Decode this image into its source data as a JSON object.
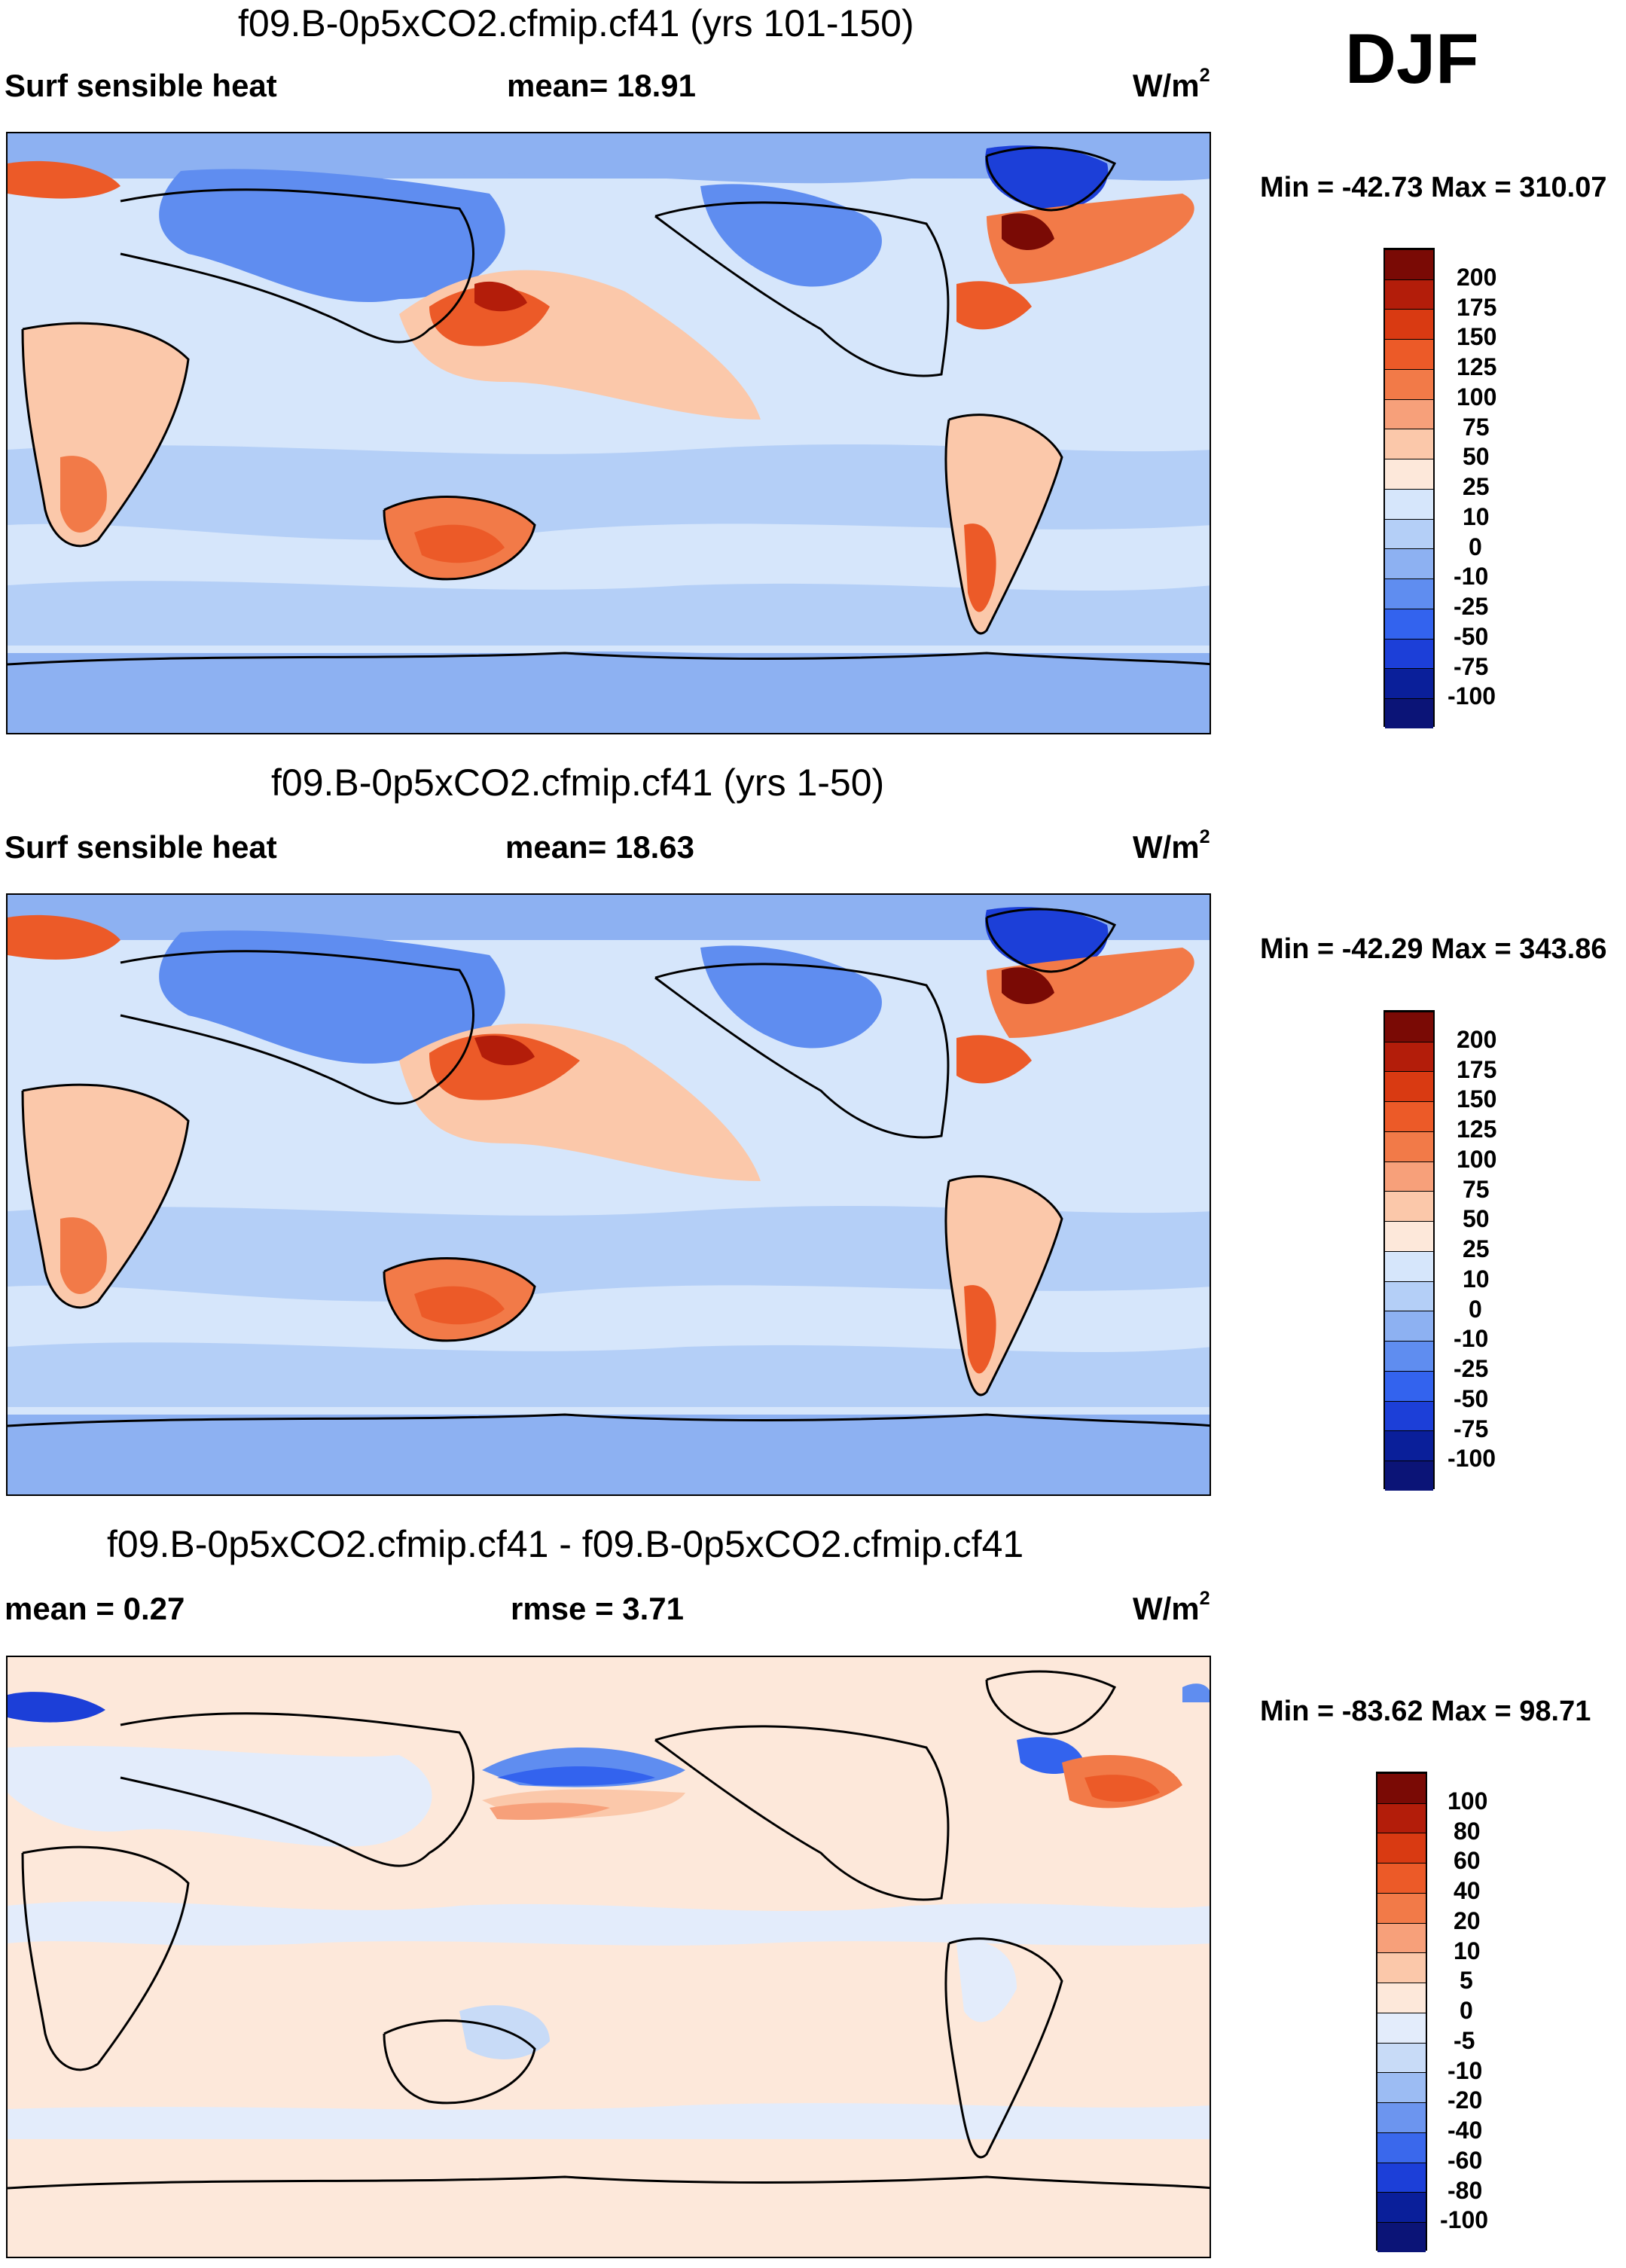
{
  "season": "DJF",
  "panels": [
    {
      "id": "p1",
      "title": "f09.B-0p5xCO2.cfmip.cf41 (yrs 101-150)",
      "left_label": "Surf sensible heat",
      "center_label": "mean=  18.91",
      "units": "W/m",
      "units_exp": "2",
      "minmax": "Min = -42.73 Max = 310.07",
      "colorbar_labels": [
        "200",
        "175",
        "150",
        "125",
        "100",
        "75",
        "50",
        "25",
        "10",
        "0",
        "-10",
        "-25",
        "-50",
        "-75",
        "-100"
      ],
      "colors": [
        "#7a0a05",
        "#b31d0a",
        "#d93a12",
        "#ec5a28",
        "#f27a48",
        "#f7a07a",
        "#fbc8aa",
        "#fde8da",
        "#d6e6fb",
        "#b4cff7",
        "#8db1f2",
        "#5f8df0",
        "#3363ee",
        "#1c3fd8",
        "#0a1f9a",
        "#0b1477"
      ]
    },
    {
      "id": "p2",
      "title": "f09.B-0p5xCO2.cfmip.cf41 (yrs 1-50)",
      "left_label": "Surf sensible heat",
      "center_label": "mean=  18.63",
      "units": "W/m",
      "units_exp": "2",
      "minmax": "Min = -42.29 Max = 343.86",
      "colorbar_labels": [
        "200",
        "175",
        "150",
        "125",
        "100",
        "75",
        "50",
        "25",
        "10",
        "0",
        "-10",
        "-25",
        "-50",
        "-75",
        "-100"
      ],
      "colors": [
        "#7a0a05",
        "#b31d0a",
        "#d93a12",
        "#ec5a28",
        "#f27a48",
        "#f7a07a",
        "#fbc8aa",
        "#fde8da",
        "#d6e6fb",
        "#b4cff7",
        "#8db1f2",
        "#5f8df0",
        "#3363ee",
        "#1c3fd8",
        "#0a1f9a",
        "#0b1477"
      ]
    },
    {
      "id": "p3",
      "title": "f09.B-0p5xCO2.cfmip.cf41 - f09.B-0p5xCO2.cfmip.cf41",
      "left_label": "mean =   0.27",
      "center_label": "rmse =   3.71",
      "units": "W/m",
      "units_exp": "2",
      "minmax": "Min = -83.62 Max =  98.71",
      "colorbar_labels": [
        "100",
        "80",
        "60",
        "40",
        "20",
        "10",
        "5",
        "0",
        "-5",
        "-10",
        "-20",
        "-40",
        "-60",
        "-80",
        "-100"
      ],
      "colors": [
        "#7a0a05",
        "#b31d0a",
        "#d93a12",
        "#ec5a28",
        "#f27a48",
        "#f7a07a",
        "#fbc8aa",
        "#fde8da",
        "#e3ecfb",
        "#c8dbf7",
        "#9cbcf3",
        "#6c95ef",
        "#3a68ec",
        "#1c3fd8",
        "#0a1f9a",
        "#0b1477"
      ]
    }
  ]
}
